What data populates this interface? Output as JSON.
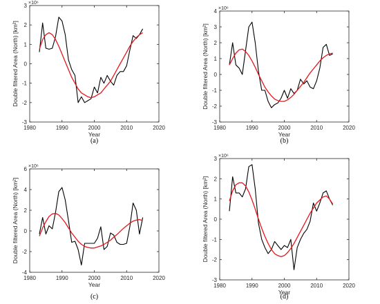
{
  "chart_data": [
    {
      "type": "line",
      "panel_label": "(a)",
      "xlabel": "Year",
      "ylabel": "Double filtered Area (North) [km²]",
      "y_exponent": "×10⁶",
      "xlim": [
        1980,
        2020
      ],
      "ylim": [
        -3,
        3
      ],
      "xticks": [
        1980,
        1990,
        2000,
        2010,
        2020
      ],
      "yticks": [
        -3,
        -2,
        -1,
        0,
        1,
        2,
        3
      ],
      "grid": false,
      "series": [
        {
          "color": "#000000",
          "x": [
            1983,
            1984,
            1985,
            1986,
            1987,
            1988,
            1989,
            1990,
            1991,
            1992,
            1993,
            1994,
            1995,
            1996,
            1997,
            1998,
            1999,
            2000,
            2001,
            2002,
            2003,
            2004,
            2005,
            2006,
            2007,
            2008,
            2009,
            2010,
            2011,
            2012,
            2013,
            2014,
            2015
          ],
          "y": [
            0.6,
            2.1,
            0.8,
            0.75,
            0.8,
            1.4,
            2.4,
            2.2,
            1.5,
            0.2,
            -0.3,
            -0.6,
            -2.0,
            -1.7,
            -2.0,
            -1.9,
            -1.8,
            -1.2,
            -1.5,
            -0.7,
            -1.0,
            -0.6,
            -0.9,
            -1.1,
            -0.6,
            -0.4,
            -0.4,
            -0.1,
            0.7,
            1.45,
            1.3,
            1.5,
            1.8
          ]
        },
        {
          "color": "#e8141a",
          "x": [
            1983,
            1984,
            1985,
            1986,
            1987,
            1988,
            1989,
            1990,
            1991,
            1992,
            1993,
            1994,
            1995,
            1996,
            1997,
            1998,
            1999,
            2000,
            2001,
            2002,
            2003,
            2004,
            2005,
            2006,
            2007,
            2008,
            2009,
            2010,
            2011,
            2012,
            2013,
            2014,
            2015
          ],
          "y": [
            0.75,
            1.25,
            1.5,
            1.6,
            1.5,
            1.25,
            0.9,
            0.5,
            0.1,
            -0.3,
            -0.7,
            -1.0,
            -1.3,
            -1.5,
            -1.6,
            -1.7,
            -1.75,
            -1.7,
            -1.6,
            -1.5,
            -1.3,
            -1.1,
            -0.9,
            -0.6,
            -0.3,
            0.0,
            0.3,
            0.6,
            0.9,
            1.15,
            1.35,
            1.5,
            1.6
          ]
        }
      ]
    },
    {
      "type": "line",
      "panel_label": "(b)",
      "xlabel": "Year",
      "ylabel": "Double filtered Area (North) [km²]",
      "y_exponent": "×10⁶",
      "xlim": [
        1980,
        2020
      ],
      "ylim": [
        -3,
        4
      ],
      "xticks": [
        1980,
        1990,
        2000,
        2010,
        2020
      ],
      "yticks": [
        -3,
        -2,
        -1,
        0,
        1,
        2,
        3,
        4
      ],
      "grid": false,
      "series": [
        {
          "color": "#000000",
          "x": [
            1983,
            1984,
            1985,
            1986,
            1987,
            1988,
            1989,
            1990,
            1991,
            1992,
            1993,
            1994,
            1995,
            1996,
            1997,
            1998,
            1999,
            2000,
            2001,
            2002,
            2003,
            2004,
            2005,
            2006,
            2007,
            2008,
            2009,
            2010,
            2011,
            2012,
            2013,
            2014,
            2015
          ],
          "y": [
            0.6,
            2.0,
            0.6,
            0.4,
            0.0,
            1.5,
            3.0,
            3.3,
            2.0,
            0.2,
            -1.0,
            -1.0,
            -1.7,
            -2.1,
            -1.9,
            -1.8,
            -1.5,
            -1.0,
            -1.5,
            -0.9,
            -1.2,
            -1.0,
            -0.3,
            -0.6,
            -0.4,
            -0.8,
            -0.9,
            -0.4,
            0.4,
            1.7,
            1.9,
            1.2,
            1.3
          ]
        },
        {
          "color": "#e8141a",
          "x": [
            1983,
            1984,
            1985,
            1986,
            1987,
            1988,
            1989,
            1990,
            1991,
            1992,
            1993,
            1994,
            1995,
            1996,
            1997,
            1998,
            1999,
            2000,
            2001,
            2002,
            2003,
            2004,
            2005,
            2006,
            2007,
            2008,
            2009,
            2010,
            2011,
            2012,
            2013,
            2014,
            2015
          ],
          "y": [
            0.6,
            1.0,
            1.35,
            1.55,
            1.6,
            1.45,
            1.2,
            0.85,
            0.45,
            0.0,
            -0.4,
            -0.8,
            -1.1,
            -1.35,
            -1.55,
            -1.65,
            -1.7,
            -1.7,
            -1.6,
            -1.45,
            -1.25,
            -1.0,
            -0.75,
            -0.5,
            -0.2,
            0.1,
            0.35,
            0.6,
            0.85,
            1.05,
            1.2,
            1.3,
            1.35
          ]
        }
      ]
    },
    {
      "type": "line",
      "panel_label": "(c)",
      "xlabel": "Year",
      "ylabel": "Double filtered Area (North) [km²]",
      "y_exponent": "×10⁶",
      "xlim": [
        1980,
        2020
      ],
      "ylim": [
        -4,
        6
      ],
      "xticks": [
        1980,
        1990,
        2000,
        2010,
        2020
      ],
      "yticks": [
        -4,
        -2,
        0,
        2,
        4,
        6
      ],
      "grid": false,
      "series": [
        {
          "color": "#000000",
          "x": [
            1983,
            1984,
            1985,
            1986,
            1987,
            1988,
            1989,
            1990,
            1991,
            1992,
            1993,
            1994,
            1995,
            1996,
            1997,
            1998,
            1999,
            2000,
            2001,
            2002,
            2003,
            2004,
            2005,
            2006,
            2007,
            2008,
            2009,
            2010,
            2011,
            2012,
            2013,
            2014,
            2015
          ],
          "y": [
            -0.3,
            1.3,
            -0.3,
            0.5,
            0.2,
            1.8,
            3.8,
            4.2,
            3.0,
            1.0,
            -1.1,
            -1.0,
            -1.8,
            -3.3,
            -1.2,
            -1.2,
            -1.2,
            -1.2,
            -0.7,
            0.4,
            -1.8,
            -1.5,
            -0.2,
            -0.4,
            -1.1,
            -1.3,
            -1.3,
            -1.2,
            0.4,
            2.7,
            2.0,
            -0.3,
            1.3
          ]
        },
        {
          "color": "#e8141a",
          "x": [
            1983,
            1984,
            1985,
            1986,
            1987,
            1988,
            1989,
            1990,
            1991,
            1992,
            1993,
            1994,
            1995,
            1996,
            1997,
            1998,
            1999,
            2000,
            2001,
            2002,
            2003,
            2004,
            2005,
            2006,
            2007,
            2008,
            2009,
            2010,
            2011,
            2012,
            2013,
            2014,
            2015
          ],
          "y": [
            -0.5,
            0.3,
            0.9,
            1.4,
            1.65,
            1.7,
            1.55,
            1.2,
            0.8,
            0.3,
            -0.2,
            -0.6,
            -1.0,
            -1.3,
            -1.5,
            -1.6,
            -1.65,
            -1.65,
            -1.55,
            -1.45,
            -1.3,
            -1.1,
            -0.9,
            -0.6,
            -0.35,
            -0.05,
            0.25,
            0.5,
            0.75,
            0.95,
            1.05,
            1.1,
            1.0
          ]
        }
      ]
    },
    {
      "type": "line",
      "panel_label": "(d)",
      "xlabel": "Year",
      "ylabel": "Double filtered Area (North) [km²]",
      "y_exponent": "×10⁶",
      "xlim": [
        1980,
        2020
      ],
      "ylim": [
        -3,
        3
      ],
      "xticks": [
        1980,
        1990,
        2000,
        2010,
        2020
      ],
      "yticks": [
        -3,
        -2,
        -1,
        0,
        1,
        2,
        3
      ],
      "grid": false,
      "series": [
        {
          "color": "#000000",
          "x": [
            1983,
            1984,
            1985,
            1986,
            1987,
            1988,
            1989,
            1990,
            1991,
            1992,
            1993,
            1994,
            1995,
            1996,
            1997,
            1998,
            1999,
            2000,
            2001,
            2002,
            2003,
            2004,
            2005,
            2006,
            2007,
            2008,
            2009,
            2010,
            2011,
            2012,
            2013,
            2014,
            2015
          ],
          "y": [
            0.4,
            2.1,
            1.3,
            1.3,
            1.1,
            1.5,
            2.6,
            2.7,
            1.5,
            -0.2,
            -1.0,
            -1.4,
            -1.7,
            -1.5,
            -1.1,
            -1.3,
            -1.5,
            -1.3,
            -1.4,
            -1.0,
            -2.5,
            -1.4,
            -1.0,
            -0.7,
            -0.5,
            -0.1,
            0.8,
            0.4,
            0.8,
            1.3,
            1.4,
            1.0,
            0.7
          ]
        },
        {
          "color": "#e8141a",
          "x": [
            1983,
            1984,
            1985,
            1986,
            1987,
            1988,
            1989,
            1990,
            1991,
            1992,
            1993,
            1994,
            1995,
            1996,
            1997,
            1998,
            1999,
            2000,
            2001,
            2002,
            2003,
            2004,
            2005,
            2006,
            2007,
            2008,
            2009,
            2010,
            2011,
            2012,
            2013,
            2014,
            2015
          ],
          "y": [
            0.9,
            1.4,
            1.7,
            1.8,
            1.8,
            1.65,
            1.35,
            0.95,
            0.5,
            0.0,
            -0.45,
            -0.85,
            -1.2,
            -1.5,
            -1.7,
            -1.8,
            -1.85,
            -1.8,
            -1.65,
            -1.45,
            -1.2,
            -0.9,
            -0.6,
            -0.3,
            0.0,
            0.3,
            0.55,
            0.8,
            0.95,
            1.1,
            1.15,
            1.0,
            0.75
          ]
        }
      ]
    }
  ]
}
